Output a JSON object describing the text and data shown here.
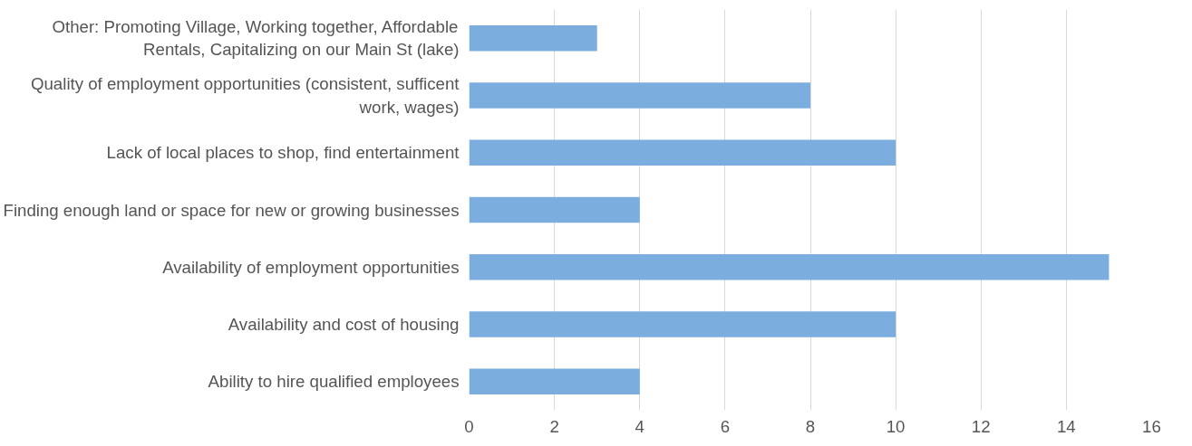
{
  "chart_data": {
    "type": "bar",
    "orientation": "horizontal",
    "categories": [
      "Other: Promoting Village, Working together, Affordable Rentals, Capitalizing on our Main St (lake)",
      "Quality of employment opportunities (consistent, sufficent work, wages)",
      "Lack of local places to shop, find entertainment",
      "Finding enough land or space for new or growing businesses",
      "Availability of employment opportunities",
      "Availability and cost of housing",
      "Ability to hire qualified employees"
    ],
    "values": [
      3,
      8,
      10,
      4,
      15,
      10,
      4
    ],
    "color": "#7badde",
    "xlim": [
      0,
      16
    ],
    "xticks": [
      0,
      2,
      4,
      6,
      8,
      10,
      12,
      14,
      16
    ],
    "grid": "x"
  }
}
